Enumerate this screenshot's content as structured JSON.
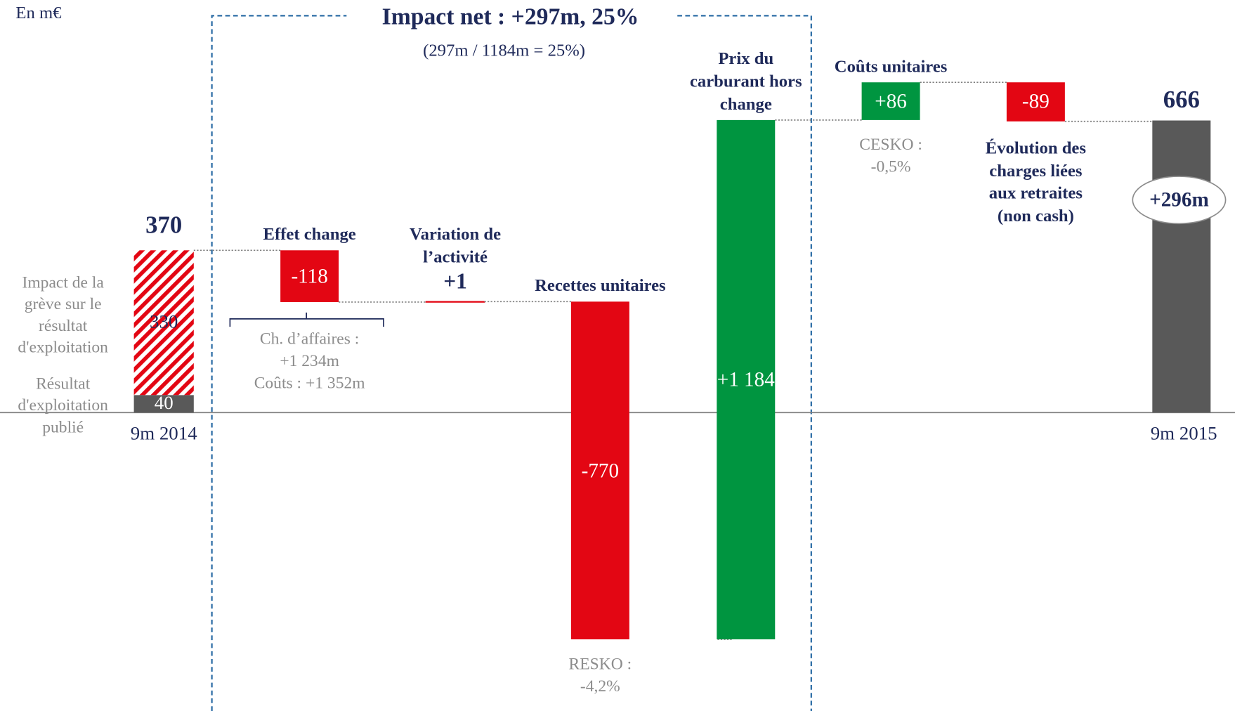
{
  "chart_data": {
    "type": "waterfall",
    "unit_label": "En m€",
    "bracket_title": "Impact net : +297m, 25%",
    "bracket_subtitle": "(297m / 1184m = 25%)",
    "start": {
      "label": "9m 2014",
      "total": 370,
      "total_label": "370",
      "segments": [
        {
          "name": "Résultat d'exploitation publié",
          "value": 40,
          "color": "#595959"
        },
        {
          "name": "Impact de la grève sur le résultat d'exploitation",
          "value": 330,
          "color": "#e30613",
          "hatched": true
        }
      ]
    },
    "categories": [
      "Effet change",
      "Variation de l’activité",
      "Recettes unitaires",
      "Prix du carburant hors change",
      "Coûts unitaires",
      "Évolution des charges liées aux retraites (non cash)"
    ],
    "values": [
      -118,
      1,
      -770,
      1184,
      86,
      -89
    ],
    "value_labels": [
      "-118",
      "+1",
      "-770",
      "+1 184",
      "+86",
      "-89"
    ],
    "colors": [
      "#e30613",
      "#e30613",
      "#e30613",
      "#009540",
      "#009540",
      "#e30613"
    ],
    "notes": [
      [
        "Ch. d’affaires :",
        "+1 234m",
        "Coûts : +1 352m"
      ],
      null,
      [
        "RESKO :",
        "-4,2%"
      ],
      null,
      [
        "CESKO :",
        "-0,5%"
      ],
      null
    ],
    "end": {
      "label": "9m 2015",
      "value": 666,
      "value_label": "666",
      "color": "#595959",
      "badge": "+296m"
    }
  }
}
